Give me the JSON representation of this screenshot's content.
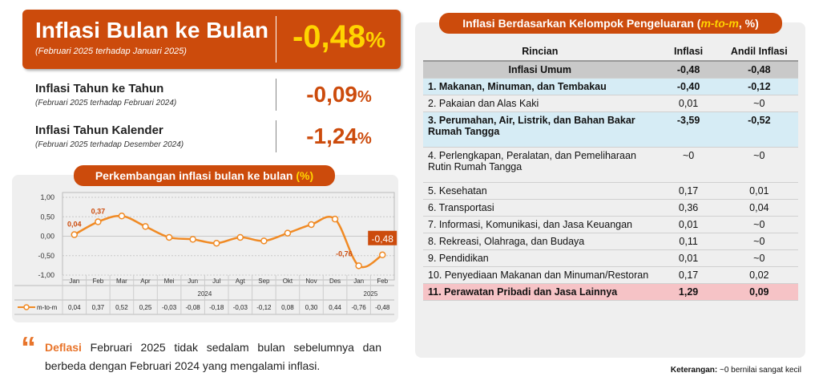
{
  "headline": {
    "title": "Inflasi Bulan ke Bulan",
    "subtitle": "(Februari 2025 terhadap Januari 2025)",
    "value": "-0,48",
    "unit": "%"
  },
  "yoy": {
    "title": "Inflasi Tahun ke Tahun",
    "subtitle": "(Februari 2025 terhadap Februari 2024)",
    "value": "-0,09",
    "unit": "%"
  },
  "ytd": {
    "title": "Inflasi Tahun Kalender",
    "subtitle": "(Februari 2025 terhadap Desember 2024)",
    "value": "-1,24",
    "unit": "%"
  },
  "chart_data": {
    "type": "line",
    "title": "Perkembangan inflasi bulan ke bulan",
    "title_unit": "(%)",
    "categories": [
      "Jan",
      "Feb",
      "Mar",
      "Apr",
      "Mei",
      "Jun",
      "Jul",
      "Agt",
      "Sep",
      "Okt",
      "Nov",
      "Des",
      "Jan",
      "Feb"
    ],
    "years": [
      "2024",
      "2025"
    ],
    "series": [
      {
        "name": "m-to-m",
        "color": "#f08a24",
        "values": [
          0.04,
          0.37,
          0.52,
          0.25,
          -0.03,
          -0.08,
          -0.18,
          -0.03,
          -0.12,
          0.08,
          0.3,
          0.44,
          -0.76,
          -0.48
        ],
        "value_labels": [
          "0,04",
          "0,37",
          "0,52",
          "0,25",
          "-0,03",
          "-0,08",
          "-0,18",
          "-0,03",
          "-0,12",
          "0,08",
          "0,30",
          "0,44",
          "-0,76",
          "-0,48"
        ],
        "point_labels": [
          "0,04",
          "0,37",
          null,
          null,
          null,
          null,
          null,
          null,
          null,
          null,
          null,
          null,
          "-0,76",
          "-0,48"
        ]
      }
    ],
    "ylim": [
      -1,
      1
    ],
    "yticks": [
      {
        "value": 1,
        "label": "1,00"
      },
      {
        "value": 0.5,
        "label": "0,50"
      },
      {
        "value": 0,
        "label": "0,00"
      },
      {
        "value": -0.5,
        "label": "-0,50"
      },
      {
        "value": -1,
        "label": "-1,00"
      }
    ],
    "grid": true
  },
  "note": {
    "lead": "Deflasi",
    "text": "Februari 2025 tidak sedalam bulan sebelumnya dan berbeda dengan Februari 2024 yang mengalami inflasi."
  },
  "table": {
    "title": "Inflasi Berdasarkan Kelompok Pengeluaran (",
    "title_em": "m-to-m",
    "title_end": ", %)",
    "header": [
      "Rincian",
      "Inflasi",
      "Andil Inflasi"
    ],
    "rows": [
      {
        "label": "Inflasi Umum",
        "inflasi": "-0,48",
        "andil": "-0,48",
        "highlight": "#c9c9c9"
      },
      {
        "label": "1. Makanan, Minuman, dan Tembakau",
        "inflasi": "-0,40",
        "andil": "-0,12",
        "highlight": "#d6ecf5"
      },
      {
        "label": "2. Pakaian dan Alas Kaki",
        "inflasi": "0,01",
        "andil": "~0"
      },
      {
        "label": "3. Perumahan, Air, Listrik, dan Bahan Bakar Rumah Tangga",
        "inflasi": "-3,59",
        "andil": "-0,52",
        "highlight": "#d6ecf5"
      },
      {
        "label": "4. Perlengkapan, Peralatan, dan Pemeliharaan Rutin Rumah Tangga",
        "inflasi": "~0",
        "andil": "~0"
      },
      {
        "label": "5. Kesehatan",
        "inflasi": "0,17",
        "andil": "0,01"
      },
      {
        "label": "6. Transportasi",
        "inflasi": "0,36",
        "andil": "0,04"
      },
      {
        "label": "7. Informasi, Komunikasi, dan Jasa Keuangan",
        "inflasi": "0,01",
        "andil": "~0"
      },
      {
        "label": "8. Rekreasi, Olahraga, dan Budaya",
        "inflasi": "0,11",
        "andil": "~0"
      },
      {
        "label": "9. Pendidikan",
        "inflasi": "0,01",
        "andil": "~0"
      },
      {
        "label": "10. Penyediaan Makanan dan Minuman/Restoran",
        "inflasi": "0,17",
        "andil": "0,02"
      },
      {
        "label": "11. Perawatan Pribadi dan Jasa Lainnya",
        "inflasi": "1,29",
        "andil": "0,09",
        "highlight": "#f6c3c6"
      }
    ],
    "legend_lead": "Keterangan:",
    "legend_text": "~0 bernilai sangat kecil"
  }
}
